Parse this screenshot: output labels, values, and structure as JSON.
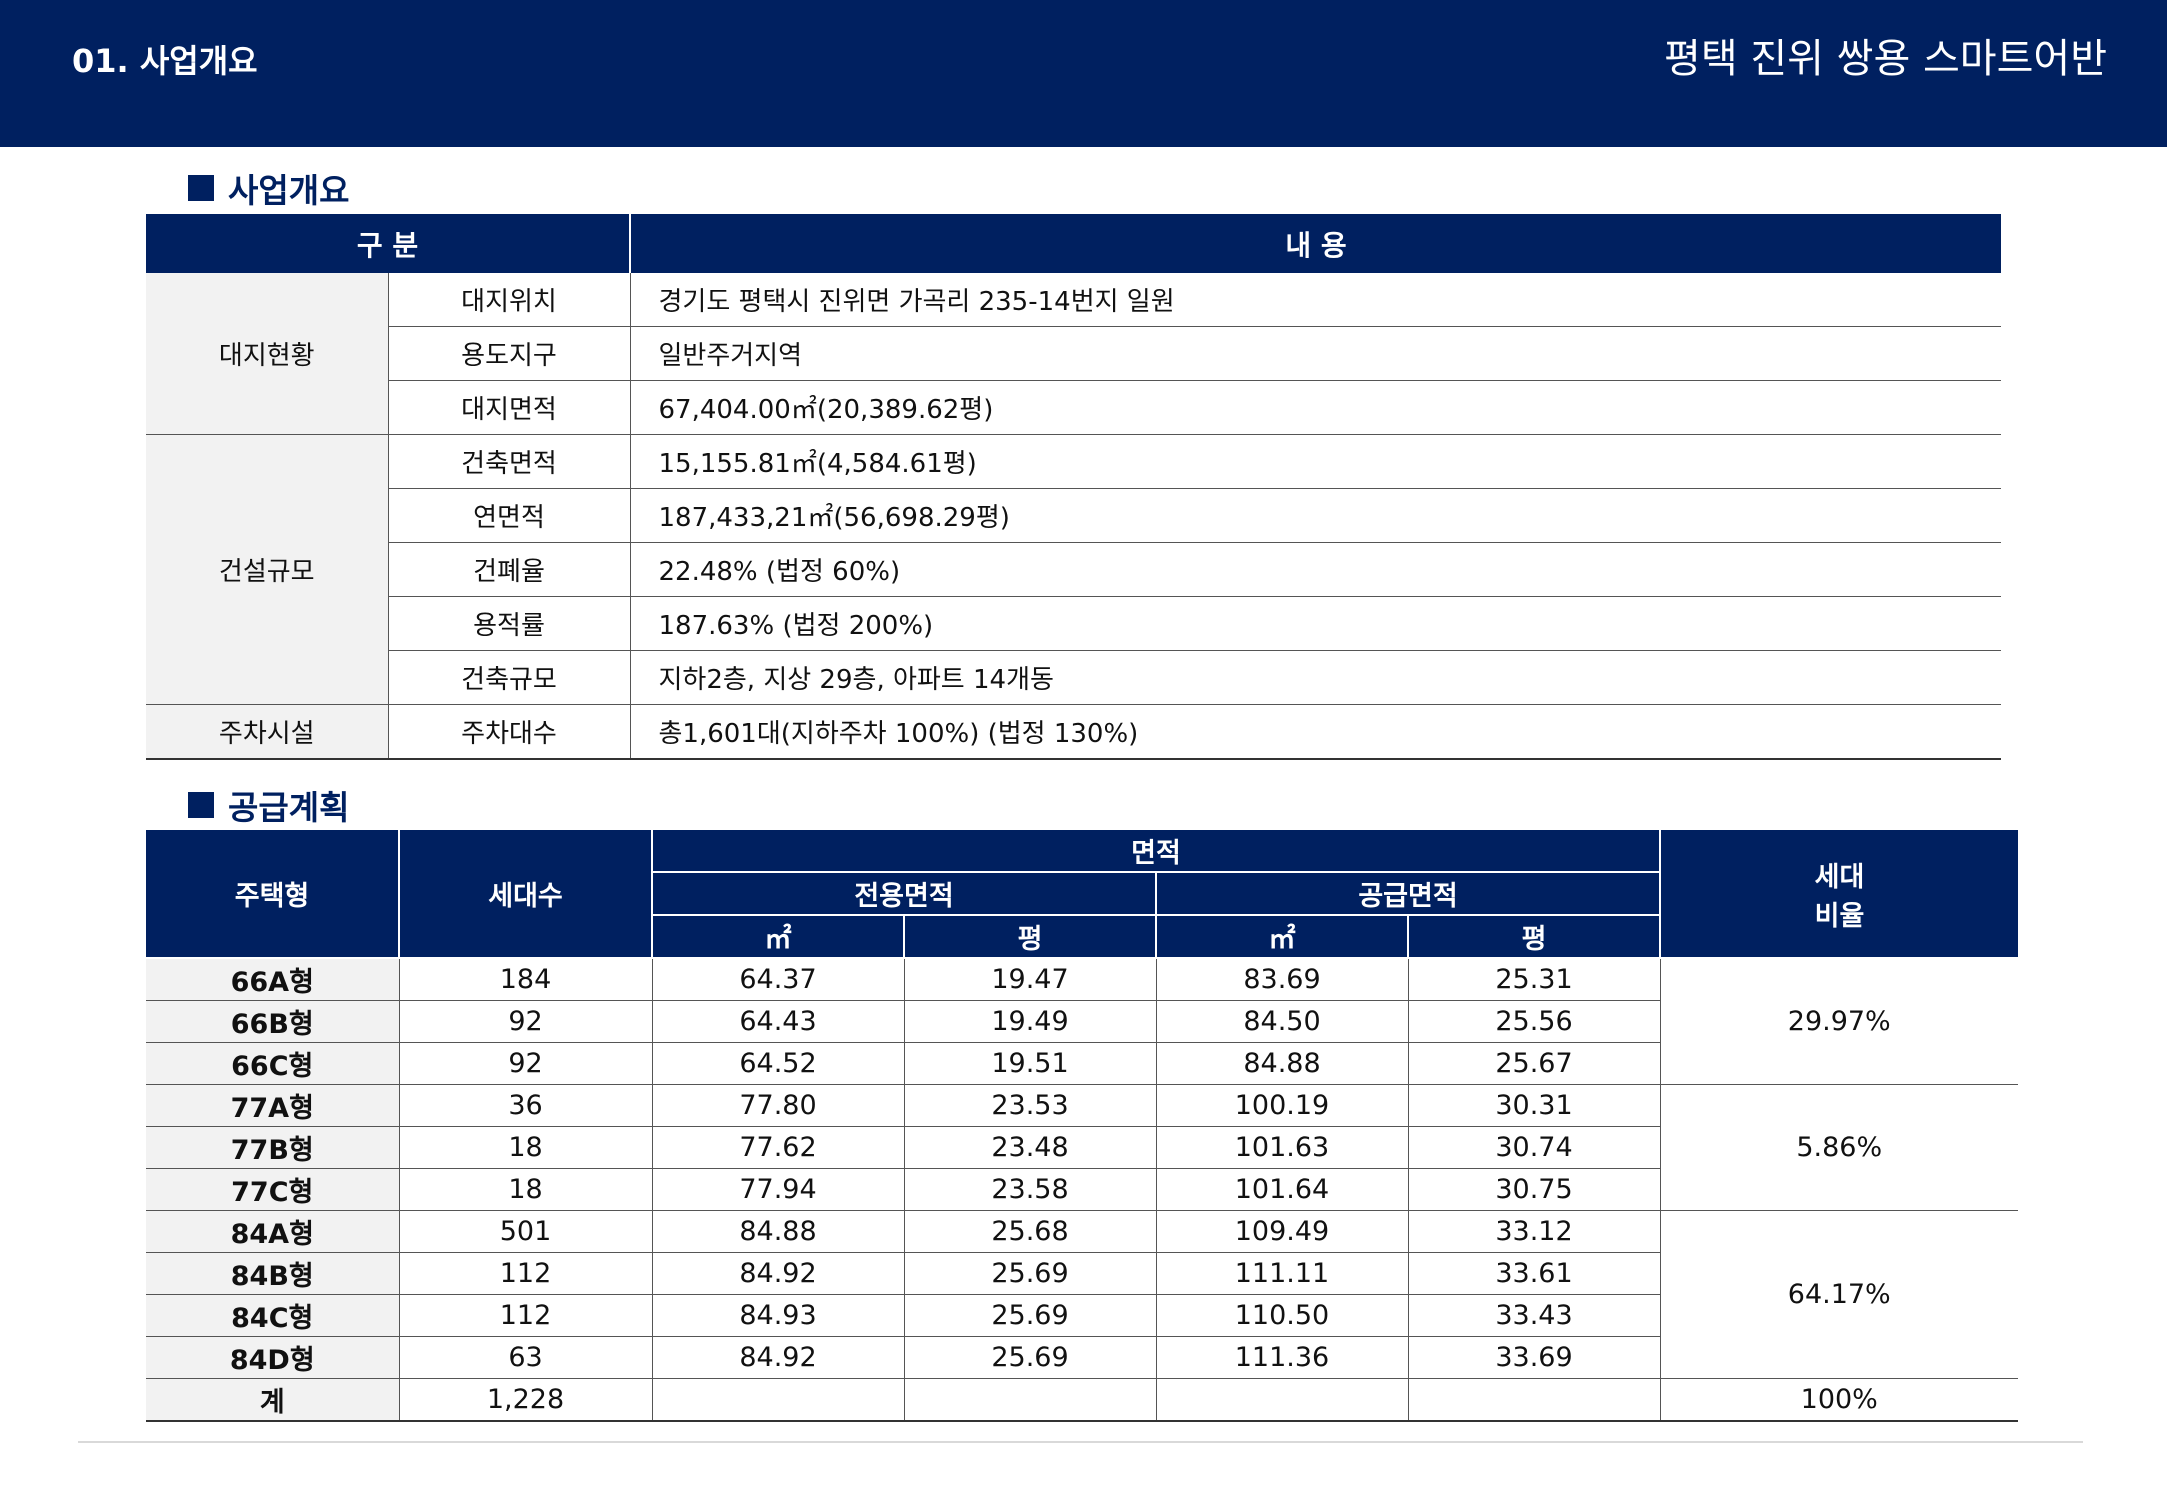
{
  "header": {
    "section": "01.  사업개요",
    "title": "평택 진위 쌍용 스마트어반",
    "bg_color": "#002060"
  },
  "overview": {
    "heading": "사업개요",
    "col_headers": [
      "구 분",
      "내 용"
    ],
    "groups": [
      {
        "name": "대지현황",
        "rows": [
          {
            "label": "대지위치",
            "value": "경기도 평택시 진위면 가곡리 235-14번지 일원"
          },
          {
            "label": "용도지구",
            "value": "일반주거지역"
          },
          {
            "label": "대지면적",
            "value": "67,404.00㎡(20,389.62평)"
          }
        ]
      },
      {
        "name": "건설규모",
        "rows": [
          {
            "label": "건축면적",
            "value": "15,155.81㎡(4,584.61평)"
          },
          {
            "label": "연면적",
            "value": "187,433,21㎡(56,698.29평)"
          },
          {
            "label": "건폐율",
            "value": "22.48%    (법정 60%)"
          },
          {
            "label": "용적률",
            "value": "187.63%   (법정 200%)"
          },
          {
            "label": "건축규모",
            "value": "지하2층, 지상 29층, 아파트 14개동"
          }
        ]
      },
      {
        "name": "주차시설",
        "rows": [
          {
            "label": "주차대수",
            "value": "총1,601대(지하주차 100%)  (법정 130%)"
          }
        ]
      }
    ]
  },
  "supply": {
    "heading": "공급계획",
    "headers": {
      "type": "주택형",
      "units": "세대수",
      "area": "면적",
      "exclusive": "전용면적",
      "supply": "공급면적",
      "sqm": "㎡",
      "pyeong": "평",
      "ratio_line1": "세대",
      "ratio_line2": "비율"
    },
    "rows": [
      {
        "type": "66A형",
        "units": "184",
        "ex_m2": "64.37",
        "ex_py": "19.47",
        "su_m2": "83.69",
        "su_py": "25.31"
      },
      {
        "type": "66B형",
        "units": "92",
        "ex_m2": "64.43",
        "ex_py": "19.49",
        "su_m2": "84.50",
        "su_py": "25.56"
      },
      {
        "type": "66C형",
        "units": "92",
        "ex_m2": "64.52",
        "ex_py": "19.51",
        "su_m2": "84.88",
        "su_py": "25.67"
      },
      {
        "type": "77A형",
        "units": "36",
        "ex_m2": "77.80",
        "ex_py": "23.53",
        "su_m2": "100.19",
        "su_py": "30.31"
      },
      {
        "type": "77B형",
        "units": "18",
        "ex_m2": "77.62",
        "ex_py": "23.48",
        "su_m2": "101.63",
        "su_py": "30.74"
      },
      {
        "type": "77C형",
        "units": "18",
        "ex_m2": "77.94",
        "ex_py": "23.58",
        "su_m2": "101.64",
        "su_py": "30.75"
      },
      {
        "type": "84A형",
        "units": "501",
        "ex_m2": "84.88",
        "ex_py": "25.68",
        "su_m2": "109.49",
        "su_py": "33.12"
      },
      {
        "type": "84B형",
        "units": "112",
        "ex_m2": "84.92",
        "ex_py": "25.69",
        "su_m2": "111.11",
        "su_py": "33.61"
      },
      {
        "type": "84C형",
        "units": "112",
        "ex_m2": "84.93",
        "ex_py": "25.69",
        "su_m2": "110.50",
        "su_py": "33.43"
      },
      {
        "type": "84D형",
        "units": "63",
        "ex_m2": "84.92",
        "ex_py": "25.69",
        "su_m2": "111.36",
        "su_py": "33.69"
      }
    ],
    "ratios": [
      {
        "value": "29.97%",
        "rows": 3
      },
      {
        "value": "5.86%",
        "rows": 3
      },
      {
        "value": "64.17%",
        "rows": 4
      }
    ],
    "total": {
      "label": "계",
      "units": "1,228",
      "ratio": "100%"
    }
  }
}
